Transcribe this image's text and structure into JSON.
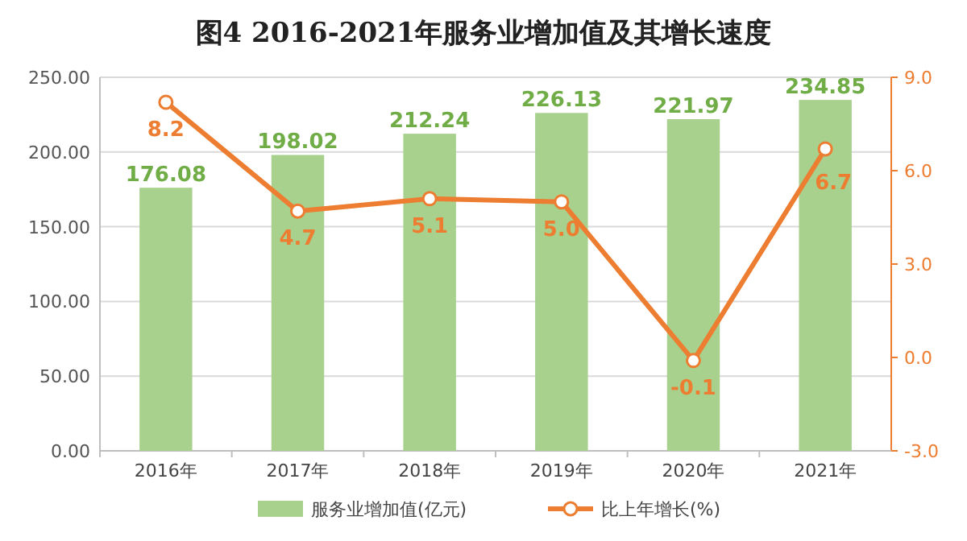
{
  "chart_data": {
    "type": "bar",
    "title": "图4 2016-2021年服务业增加值及其增长速度",
    "categories": [
      "2016年",
      "2017年",
      "2018年",
      "2019年",
      "2020年",
      "2021年"
    ],
    "series": [
      {
        "name": "服务业增加值(亿元)",
        "color": "#a9d18e",
        "values": [
          176.08,
          198.02,
          212.24,
          226.13,
          221.97,
          234.85
        ],
        "value_labels": [
          "176.08",
          "198.02",
          "212.24",
          "226.13",
          "221.97",
          "234.85"
        ]
      },
      {
        "name": "比上年增长(%)",
        "type": "line",
        "axis": "y2",
        "color": "#ed7d31",
        "values": [
          8.2,
          4.7,
          5.1,
          5.0,
          -0.1,
          6.7
        ],
        "value_labels": [
          "8.2",
          "4.7",
          "5.1",
          "5.0",
          "-0.1",
          "6.7"
        ]
      }
    ],
    "ylim": [
      0,
      250
    ],
    "yticks": [
      {
        "value": 0,
        "label": "0.00"
      },
      {
        "value": 50,
        "label": "50.00"
      },
      {
        "value": 100,
        "label": "100.00"
      },
      {
        "value": 150,
        "label": "150.00"
      },
      {
        "value": 200,
        "label": "200.00"
      },
      {
        "value": 250,
        "label": "250.00"
      }
    ],
    "y2lim": [
      -3,
      9
    ],
    "y2ticks": [
      {
        "value": -3,
        "label": "-3.0"
      },
      {
        "value": 0,
        "label": "0.0"
      },
      {
        "value": 3,
        "label": "3.0"
      },
      {
        "value": 6,
        "label": "6.0"
      },
      {
        "value": 9,
        "label": "9.0"
      }
    ],
    "grid": "y",
    "legend": "bottom",
    "marker": "circle"
  }
}
